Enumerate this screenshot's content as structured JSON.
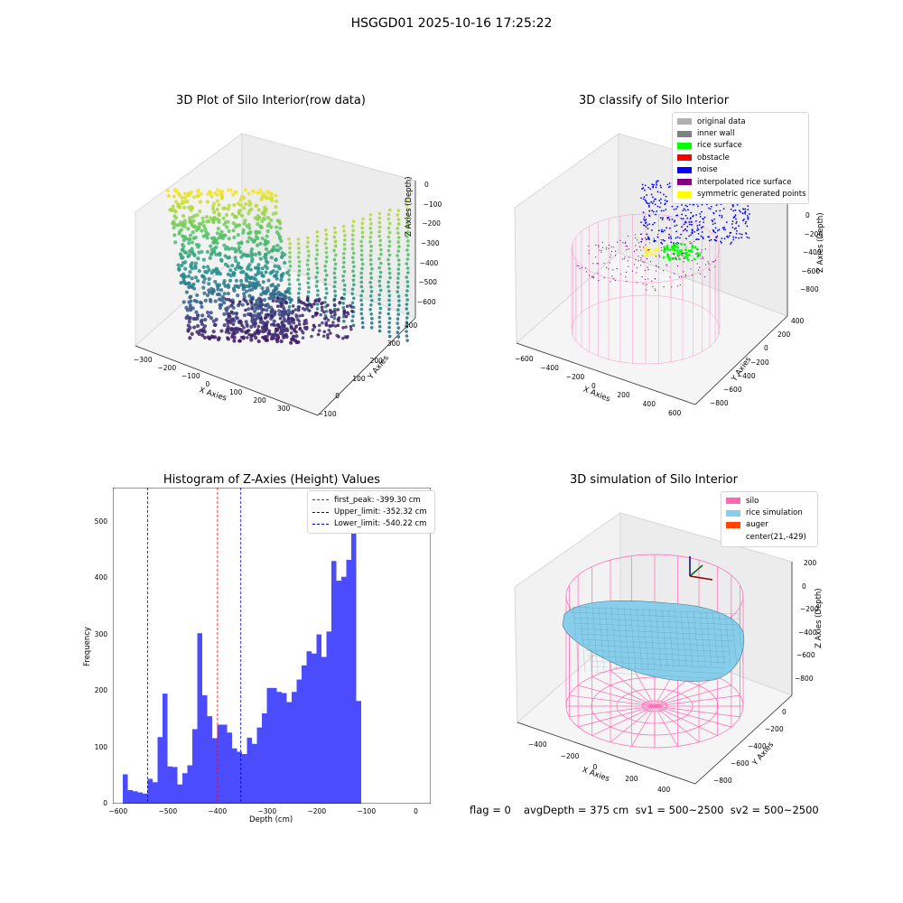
{
  "suptitle": "HSGGD01 2025-10-16 17:25:22",
  "colors": {
    "bar": "#4c4cff",
    "first_peak": "#ff0000",
    "limit": "#0000cc",
    "silo": "#ff69b4",
    "rice": "#87ceeb",
    "auger": "#ff4500"
  },
  "panels": {
    "raw": {
      "title": "3D Plot of Silo Interior(row data)",
      "xlabel": "X Axies",
      "ylabel": "Y Axies",
      "zlabel": "Z Axies (Depth)",
      "xticks": [
        "−300",
        "−200",
        "−100",
        "0",
        "100",
        "200",
        "300"
      ],
      "yticks": [
        "−100",
        "0",
        "100",
        "200",
        "300",
        "400"
      ],
      "zticks": [
        "0",
        "−100",
        "−200",
        "−300",
        "−400",
        "−500",
        "−600"
      ]
    },
    "classify": {
      "title": "3D classify of Silo Interior",
      "xlabel": "X Axies",
      "ylabel": "Y Axies",
      "zlabel": "Z Axies (Depth)",
      "xticks": [
        "−600",
        "−400",
        "−200",
        "0",
        "200",
        "400",
        "600"
      ],
      "yticks": [
        "−800",
        "−600",
        "−400",
        "−200",
        "0",
        "200",
        "400"
      ],
      "zticks": [
        "0",
        "−200",
        "−400",
        "−600",
        "−800"
      ],
      "legend": [
        {
          "label": "original data",
          "color": "#b0b0b0"
        },
        {
          "label": "inner wall",
          "color": "#808080"
        },
        {
          "label": "rice surface",
          "color": "#00ff00"
        },
        {
          "label": "obstacle",
          "color": "#ff0000"
        },
        {
          "label": "noise",
          "color": "#0000ff"
        },
        {
          "label": "interpolated rice surface",
          "color": "#800080"
        },
        {
          "label": "symmetric generated points",
          "color": "#ffff00"
        }
      ]
    },
    "simulation": {
      "title": "3D simulation of Silo Interior",
      "xlabel": "X Axies",
      "ylabel": "Y Axies",
      "zlabel": "Z Axies (Depth)",
      "xticks": [
        "−400",
        "−200",
        "0",
        "200",
        "400"
      ],
      "yticks": [
        "−800",
        "−600",
        "−400",
        "−200",
        "0"
      ],
      "zticks": [
        "200",
        "0",
        "−200",
        "−400",
        "−600",
        "−800"
      ],
      "legend": [
        {
          "label": "silo",
          "color": "#ff69b4"
        },
        {
          "label": "rice simulation",
          "color": "#87ceeb"
        },
        {
          "label": "auger",
          "color": "#ff4500"
        },
        {
          "label": "center(21,-429)",
          "color": ""
        }
      ]
    }
  },
  "footer": {
    "flag": "flag = 0",
    "avg": "avgDepth = 375 cm  sv1 = 500~2500  sv2 = 500~2500"
  },
  "chart_data": {
    "type": "bar",
    "title": "Histogram of Z-Axies (Height) Values",
    "xlabel": "Depth (cm)",
    "ylabel": "Frequency",
    "xlim": [
      -610,
      30
    ],
    "ylim": [
      0,
      560
    ],
    "xticks": [
      -600,
      -500,
      -400,
      -300,
      -200,
      -100,
      0
    ],
    "yticks": [
      0,
      100,
      200,
      300,
      400,
      500
    ],
    "bin_start": -590,
    "bin_width": 10,
    "values": [
      52,
      24,
      22,
      20,
      18,
      44,
      38,
      118,
      195,
      66,
      65,
      34,
      54,
      68,
      132,
      302,
      192,
      155,
      116,
      140,
      140,
      126,
      98,
      92,
      88,
      117,
      106,
      135,
      160,
      205,
      205,
      198,
      196,
      180,
      198,
      220,
      245,
      270,
      266,
      300,
      260,
      305,
      430,
      395,
      402,
      432,
      530,
      182
    ],
    "lines": [
      {
        "label": "first_peak: -399.30 cm",
        "x": -399.3,
        "color": "#ff0000"
      },
      {
        "label": "Upper_limit: -352.32 cm",
        "x": -352.32,
        "color": "#0000cc"
      },
      {
        "label": "Lower_limit: -540.22 cm",
        "x": -540.22,
        "color": "#0000cc"
      }
    ]
  }
}
